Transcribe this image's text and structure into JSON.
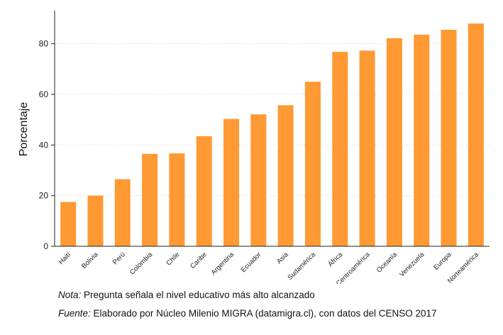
{
  "chart_data": {
    "type": "bar",
    "ylabel": "Porcentaje",
    "xlabel": "",
    "ylim": [
      0,
      92
    ],
    "yticks": [
      0,
      20,
      40,
      60,
      80
    ],
    "grid": "horizontal dotted",
    "bar_color": "#ff9933",
    "categories": [
      "Haití",
      "Bolivia",
      "Perú",
      "Colombia",
      "Chile",
      "Caribe",
      "Argentina",
      "Ecuador",
      "Asia",
      "Sudamérica",
      "África",
      "Centroamérica",
      "Oceanía",
      "Venezuela",
      "Europa",
      "Norteamérica"
    ],
    "values": [
      17.5,
      20.0,
      26.5,
      36.5,
      36.7,
      43.5,
      50.3,
      52.1,
      55.7,
      65.0,
      76.8,
      77.3,
      82.2,
      83.6,
      85.5,
      88.0
    ]
  },
  "notes": {
    "nota_label": "Nota:",
    "nota_text": "Pregunta señala el nivel educativo más alto alcanzado",
    "fuente_label": "Fuente:",
    "fuente_text": "Elaborado por Núcleo Milenio MIGRA (datamigra.cl), con datos del CENSO 2017"
  }
}
